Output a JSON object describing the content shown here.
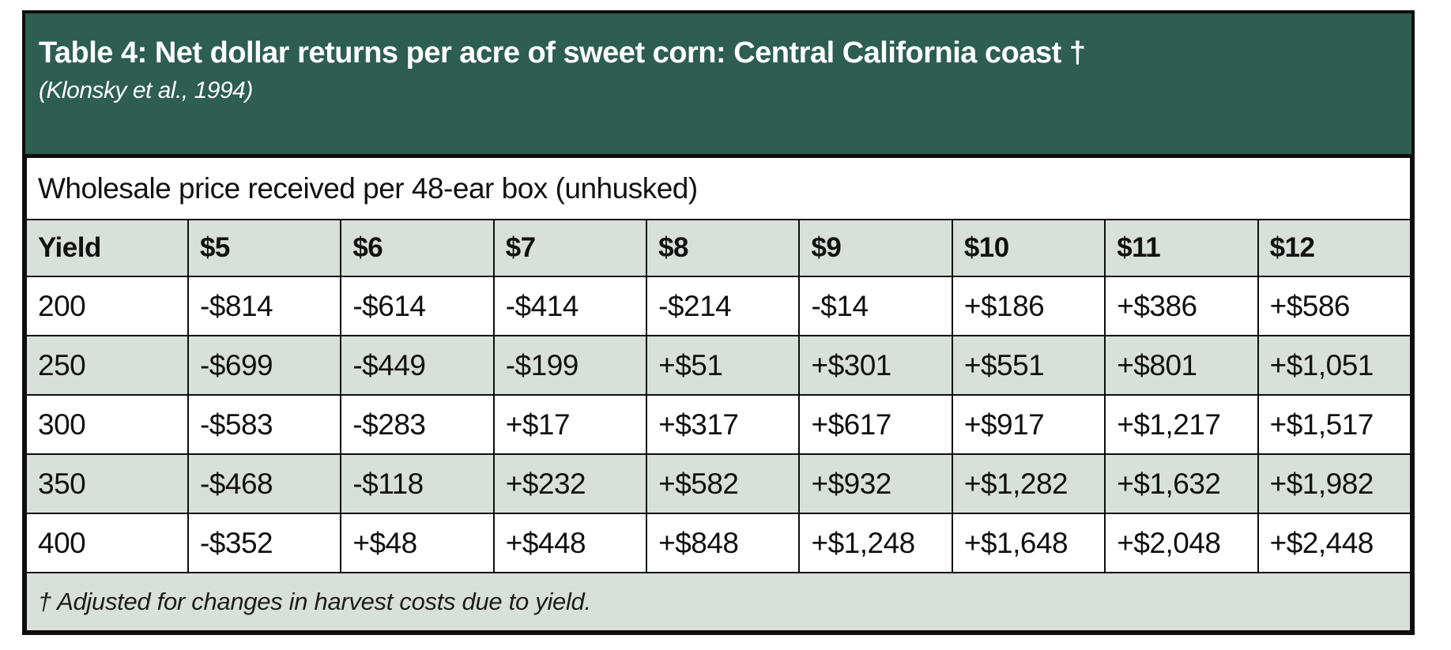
{
  "page": {
    "background": "#ffffff"
  },
  "table": {
    "title": "Table 4: Net dollar returns per acre of sweet corn: Central California coast †",
    "subtitle": "(Klonsky et al., 1994)",
    "caption": "Wholesale price received per 48-ear box (unhusked)",
    "columns": [
      "Yield",
      "$5",
      "$6",
      "$7",
      "$8",
      "$9",
      "$10",
      "$11",
      "$12"
    ],
    "rows": [
      [
        "200",
        "-$814",
        "-$614",
        "-$414",
        "-$214",
        "-$14",
        "+$186",
        "+$386",
        "+$586"
      ],
      [
        "250",
        "-$699",
        "-$449",
        "-$199",
        "+$51",
        "+$301",
        "+$551",
        "+$801",
        "+$1,051"
      ],
      [
        "300",
        "-$583",
        "-$283",
        "+$17",
        "+$317",
        "+$617",
        "+$917",
        "+$1,217",
        "+$1,517"
      ],
      [
        "350",
        "-$468",
        "-$118",
        "+$232",
        "+$582",
        "+$932",
        "+$1,282",
        "+$1,632",
        "+$1,982"
      ],
      [
        "400",
        "-$352",
        "+$48",
        "+$448",
        "+$848",
        "+$1,248",
        "+$1,648",
        "+$2,048",
        "+$2,448"
      ]
    ],
    "footnote": "† Adjusted for changes in harvest costs due to yield.",
    "colors": {
      "title_band_bg": "#2d5e50",
      "stripe_bg": "#d9dfda",
      "border": "#0e0e0e",
      "title_text": "#ffffff",
      "body_text": "#111111"
    }
  }
}
